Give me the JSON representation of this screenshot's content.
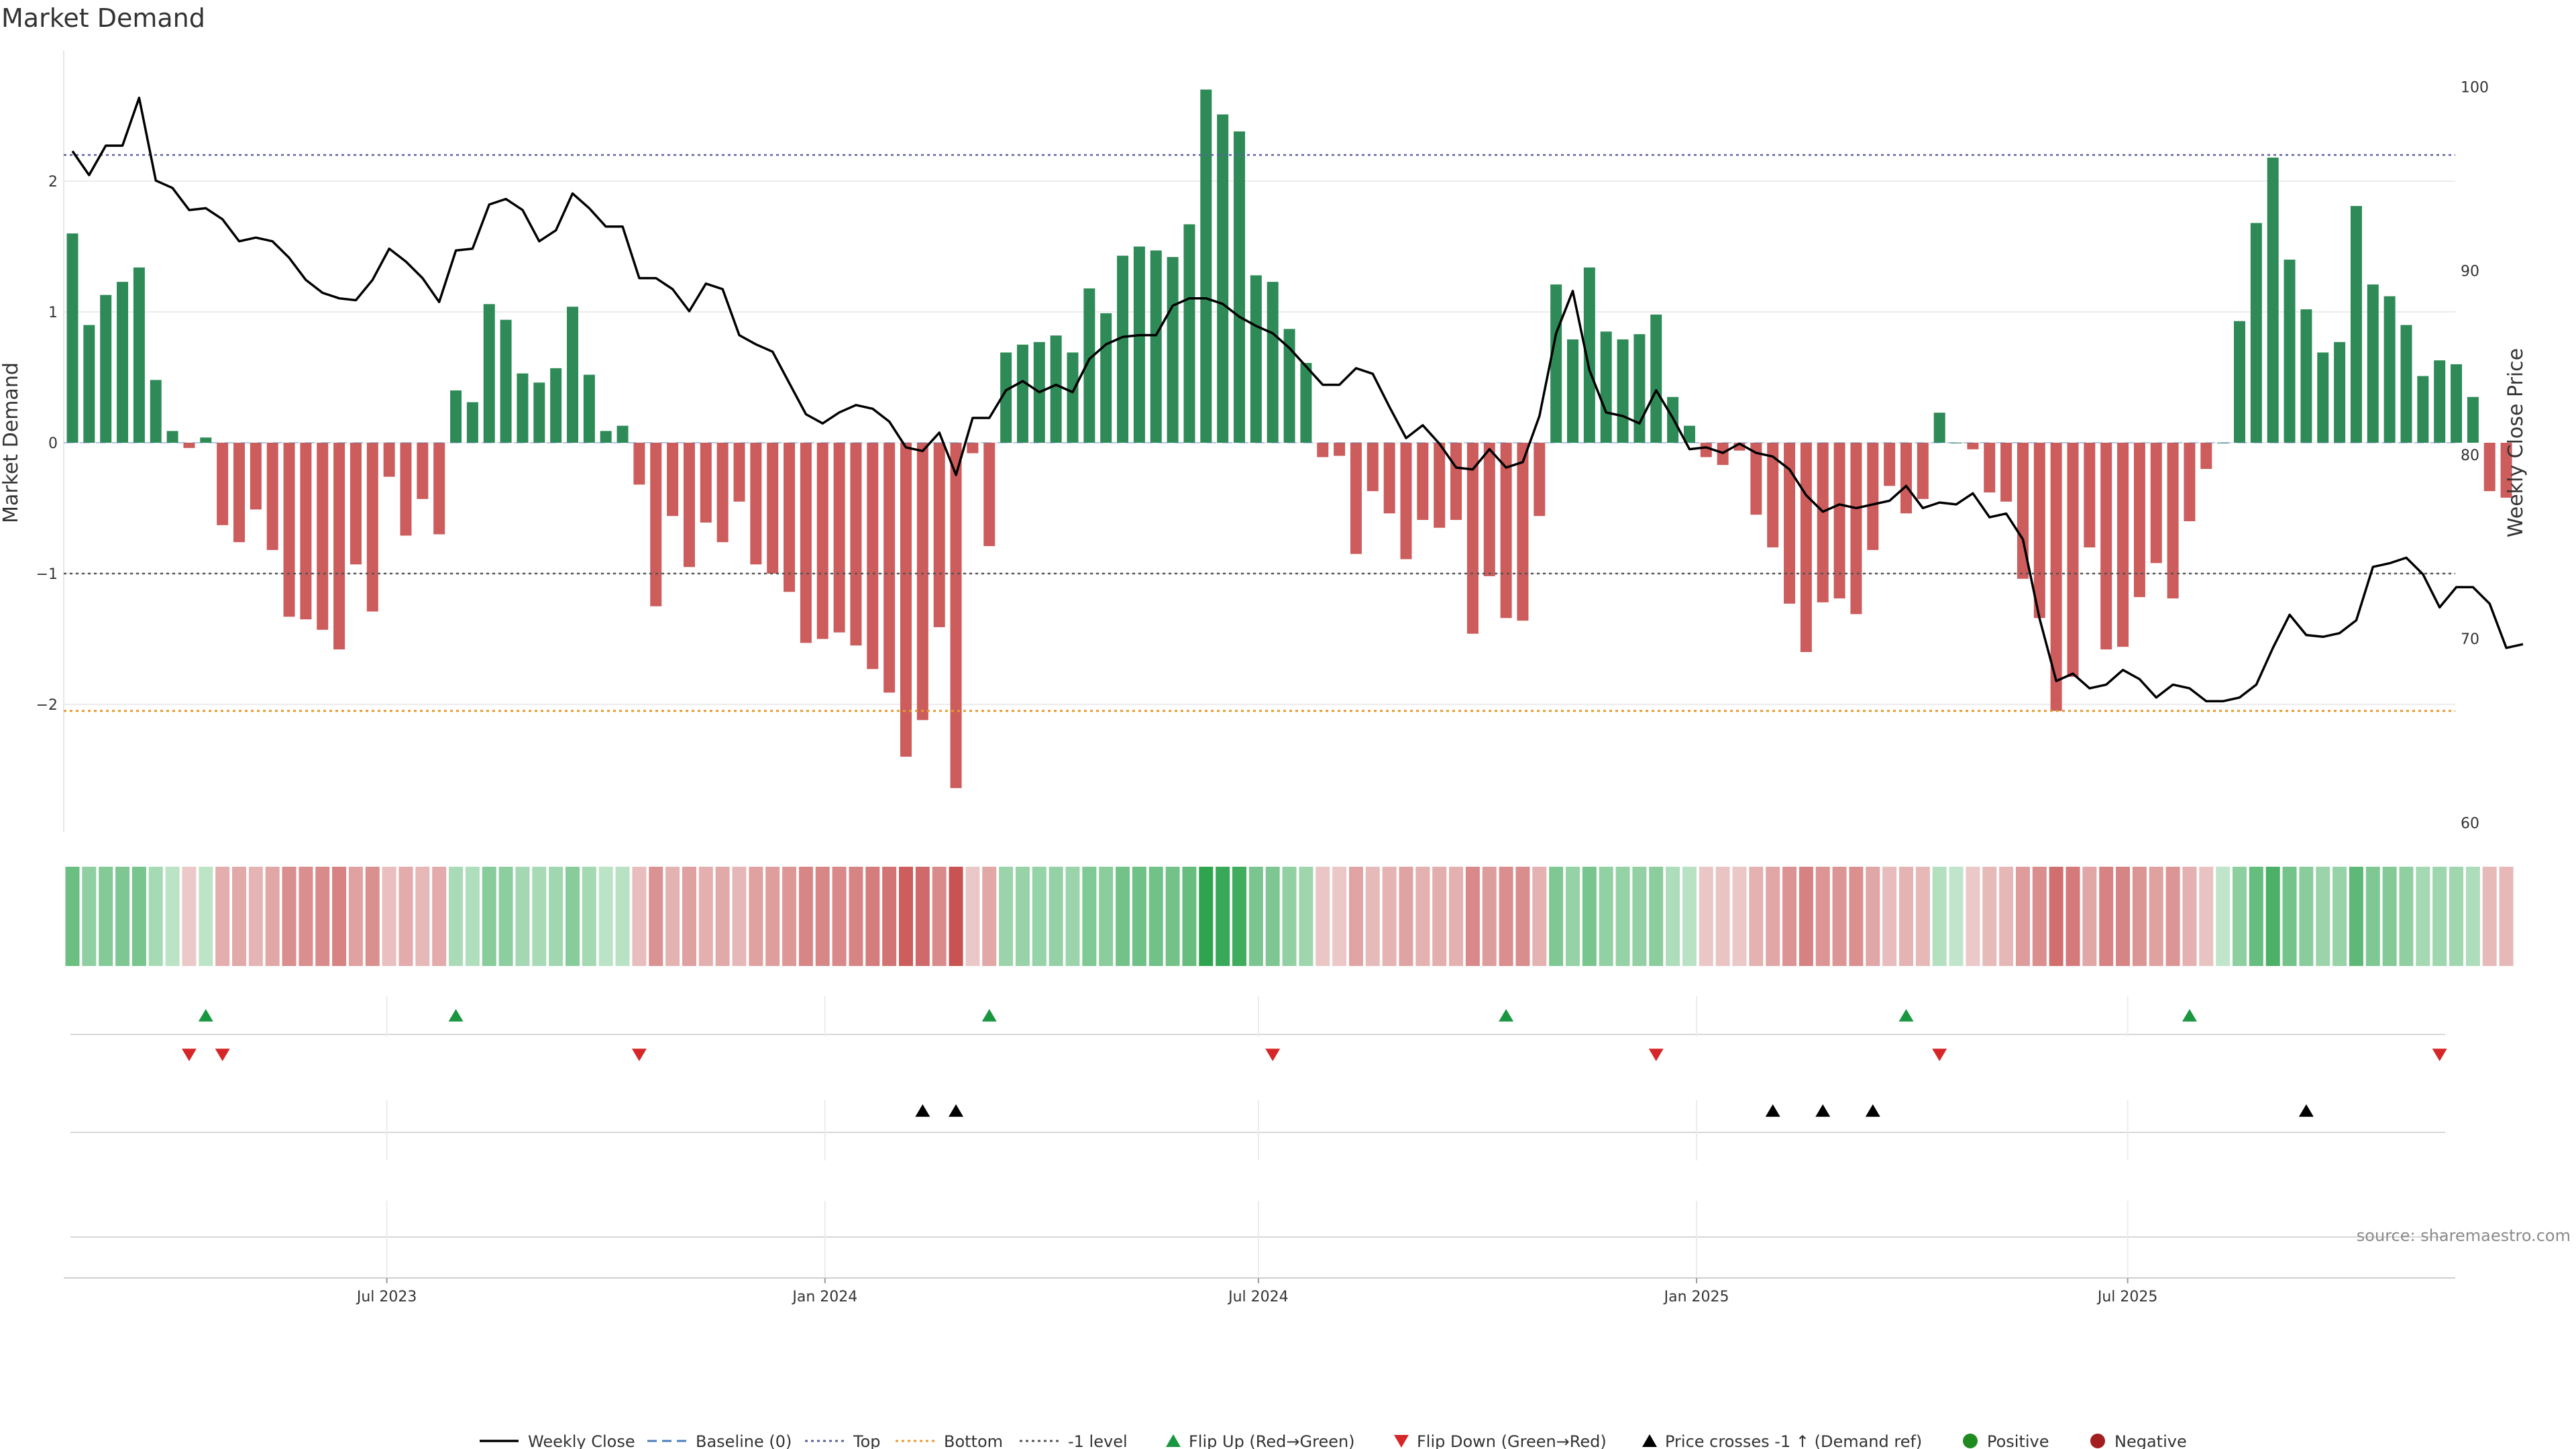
{
  "title": "Market Demand",
  "source": "source: sharemaestro.com",
  "colors": {
    "positive": "#2e8b57",
    "negative": "#cd5c5c",
    "price": "#000000",
    "top": "#5b5ea6",
    "bottom": "#e69a2e",
    "minus1": "#555555",
    "flip_up": "#1a9641",
    "flip_down": "#d62728",
    "cross": "#000000",
    "positive_dot": "#1f8a1f",
    "negative_dot": "#a31f1f"
  },
  "chart_data": {
    "type": "bar",
    "start_date": "2023-02-19",
    "step_days": 7,
    "demand": [
      1.6,
      0.9,
      1.13,
      1.23,
      1.34,
      0.48,
      0.09,
      -0.04,
      0.04,
      -0.63,
      -0.76,
      -0.51,
      -0.82,
      -1.33,
      -1.35,
      -1.43,
      -1.58,
      -0.93,
      -1.29,
      -0.26,
      -0.71,
      -0.43,
      -0.7,
      0.4,
      0.31,
      1.06,
      0.94,
      0.53,
      0.46,
      0.57,
      1.04,
      0.52,
      0.09,
      0.13,
      -0.32,
      -1.25,
      -0.56,
      -0.95,
      -0.61,
      -0.76,
      -0.45,
      -0.93,
      -1.0,
      -1.14,
      -1.53,
      -1.5,
      -1.45,
      -1.55,
      -1.73,
      -1.91,
      -2.4,
      -2.12,
      -1.41,
      -2.64,
      -0.08,
      -0.79,
      0.69,
      0.75,
      0.77,
      0.82,
      0.69,
      1.18,
      0.99,
      1.43,
      1.5,
      1.47,
      1.42,
      1.67,
      2.7,
      2.51,
      2.38,
      1.28,
      1.23,
      0.87,
      0.61,
      -0.11,
      -0.1,
      -0.85,
      -0.37,
      -0.54,
      -0.89,
      -0.59,
      -0.65,
      -0.59,
      -1.46,
      -1.02,
      -1.34,
      -1.36,
      -0.56,
      1.21,
      0.79,
      1.34,
      0.85,
      0.79,
      0.83,
      0.98,
      0.35,
      0.13,
      -0.11,
      -0.17,
      -0.06,
      -0.55,
      -0.8,
      -1.23,
      -1.6,
      -1.22,
      -1.19,
      -1.31,
      -0.82,
      -0.33,
      -0.54,
      -0.43,
      0.23,
      0.0,
      -0.05,
      -0.38,
      -0.45,
      -1.04,
      -1.34,
      -2.05,
      -1.79,
      -0.8,
      -1.58,
      -1.56,
      -1.18,
      -0.92,
      -1.19,
      -0.6,
      -0.2,
      0.0,
      0.93,
      1.68,
      2.18,
      1.4,
      1.02,
      0.69,
      0.77,
      1.81,
      1.21,
      1.12,
      0.9,
      0.51,
      0.63,
      0.6,
      0.35,
      -0.37,
      -0.42
    ],
    "price": [
      96.5,
      95.2,
      96.8,
      96.8,
      99.4,
      94.9,
      94.5,
      93.3,
      93.4,
      92.8,
      91.6,
      91.8,
      91.6,
      90.7,
      89.5,
      88.8,
      88.5,
      88.4,
      89.5,
      91.2,
      90.5,
      89.6,
      88.3,
      91.1,
      91.2,
      93.6,
      93.9,
      93.3,
      91.6,
      92.2,
      94.2,
      93.4,
      92.4,
      92.4,
      89.6,
      89.6,
      89.0,
      87.8,
      89.3,
      89.0,
      86.5,
      86.0,
      85.6,
      83.9,
      82.2,
      81.7,
      82.3,
      82.7,
      82.5,
      81.8,
      80.4,
      80.2,
      81.2,
      78.9,
      82.0,
      82.0,
      83.5,
      84.0,
      83.4,
      83.8,
      83.4,
      85.2,
      86.0,
      86.4,
      86.5,
      86.5,
      88.1,
      88.5,
      88.5,
      88.2,
      87.5,
      87.0,
      86.6,
      85.8,
      84.8,
      83.8,
      83.8,
      84.7,
      84.4,
      82.6,
      80.9,
      81.6,
      80.6,
      79.3,
      79.2,
      80.3,
      79.3,
      79.6,
      82.1,
      86.6,
      88.9,
      84.6,
      82.3,
      82.1,
      81.7,
      83.5,
      82.0,
      80.3,
      80.4,
      80.1,
      80.6,
      80.1,
      79.9,
      79.2,
      77.8,
      76.9,
      77.3,
      77.1,
      77.3,
      77.5,
      78.3,
      77.1,
      77.4,
      77.3,
      77.9,
      76.6,
      76.8,
      75.4,
      71.1,
      67.7,
      68.1,
      67.3,
      67.5,
      68.3,
      67.8,
      66.8,
      67.5,
      67.3,
      66.6,
      66.6,
      66.8,
      67.5,
      69.5,
      71.3,
      70.2,
      70.1,
      70.3,
      71.0,
      73.9,
      74.1,
      74.4,
      73.5,
      71.7,
      72.8,
      72.8,
      71.9,
      69.5,
      69.7
    ],
    "x_ticks": [
      "Jul 2023",
      "Jan 2024",
      "Jul 2024",
      "Jan 2025",
      "Jul 2025"
    ],
    "x_tick_dates": [
      "2023-07-01",
      "2024-01-01",
      "2024-07-01",
      "2025-01-01",
      "2025-07-01"
    ],
    "y_left": {
      "label": "Market Demand",
      "ticks": [
        -2,
        -1,
        0,
        1,
        2
      ],
      "range": [
        -2.95,
        3.0
      ]
    },
    "y_right": {
      "label": "Weekly Close Price",
      "ticks": [
        60,
        70,
        80,
        90,
        100
      ],
      "range": [
        59.5,
        101.8
      ]
    },
    "levels": {
      "top": 2.2,
      "bottom": -2.05,
      "minus1": -1.0,
      "baseline": 0.0
    },
    "flip_up": [
      8,
      23,
      55,
      86,
      110,
      127
    ],
    "flip_down": [
      7,
      9,
      34,
      72,
      95,
      112,
      142
    ],
    "price_cross": [
      51,
      53,
      102,
      105,
      108,
      134
    ],
    "legend": [
      {
        "label": "Weekly Close",
        "kind": "line"
      },
      {
        "label": "Baseline (0)",
        "kind": "dash"
      },
      {
        "label": "Top",
        "kind": "dot-top"
      },
      {
        "label": "Bottom",
        "kind": "dot-bottom"
      },
      {
        "label": "-1 level",
        "kind": "dot-minus1"
      },
      {
        "label": "Flip Up (Red→Green)",
        "kind": "tri-up"
      },
      {
        "label": "Flip Down (Green→Red)",
        "kind": "tri-down"
      },
      {
        "label": "Price crosses -1 ↑ (Demand ref)",
        "kind": "tri-black"
      },
      {
        "label": "Positive",
        "kind": "dot-pos"
      },
      {
        "label": "Negative",
        "kind": "dot-neg"
      }
    ]
  }
}
